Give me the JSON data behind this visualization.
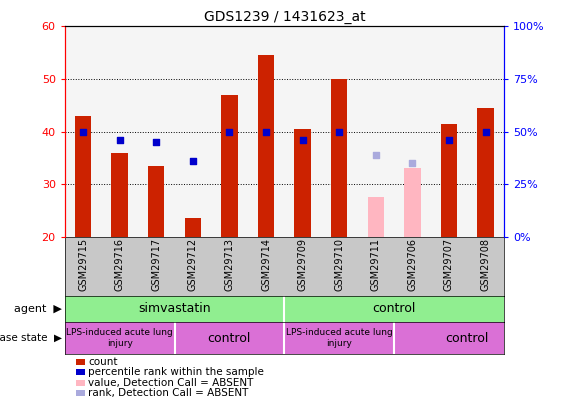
{
  "title": "GDS1239 / 1431623_at",
  "samples": [
    "GSM29715",
    "GSM29716",
    "GSM29717",
    "GSM29712",
    "GSM29713",
    "GSM29714",
    "GSM29709",
    "GSM29710",
    "GSM29711",
    "GSM29706",
    "GSM29707",
    "GSM29708"
  ],
  "count_values": [
    43,
    36,
    33.5,
    23.5,
    47,
    54.5,
    40.5,
    50,
    null,
    null,
    41.5,
    44.5
  ],
  "count_absent": [
    null,
    null,
    null,
    null,
    null,
    null,
    null,
    null,
    27.5,
    33,
    null,
    null
  ],
  "percentile_values": [
    40,
    38.5,
    38,
    34.5,
    40,
    40,
    38.5,
    40,
    null,
    null,
    38.5,
    40
  ],
  "percentile_absent": [
    null,
    null,
    null,
    null,
    null,
    null,
    null,
    null,
    35.5,
    34,
    null,
    null
  ],
  "ymin": 20,
  "ymax": 60,
  "right_yticks": [
    0,
    25,
    50,
    75,
    100
  ],
  "right_yticklabels": [
    "0%",
    "25%",
    "50%",
    "75%",
    "100%"
  ],
  "left_yticks": [
    20,
    30,
    40,
    50,
    60
  ],
  "count_color": "#CC2200",
  "count_absent_color": "#FFB6C1",
  "percentile_color": "#0000CC",
  "percentile_absent_color": "#AAAADD",
  "sample_bg": "#C8C8C8",
  "agent_color": "#90EE90",
  "disease_color": "#DA70D6",
  "legend_items": [
    {
      "label": "count",
      "color": "#CC2200"
    },
    {
      "label": "percentile rank within the sample",
      "color": "#0000CC"
    },
    {
      "label": "value, Detection Call = ABSENT",
      "color": "#FFB6C1"
    },
    {
      "label": "rank, Detection Call = ABSENT",
      "color": "#AAAADD"
    }
  ]
}
